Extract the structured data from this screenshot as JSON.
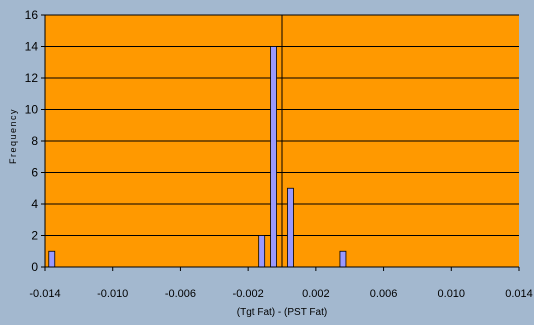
{
  "chart_data": {
    "type": "bar",
    "title": "",
    "xlabel": "(Tgt Fat) - (PST Fat)",
    "ylabel": "Frequency",
    "xlim": [
      -0.014,
      0.014
    ],
    "ylim": [
      0,
      16
    ],
    "x_ticks": [
      "-0.014",
      "-0.010",
      "-0.006",
      "-0.002",
      "0.002",
      "0.006",
      "0.010",
      "0.014"
    ],
    "x_tick_values": [
      -0.014,
      -0.01,
      -0.006,
      -0.002,
      0.002,
      0.006,
      0.01,
      0.014
    ],
    "y_ticks": [
      0,
      2,
      4,
      6,
      8,
      10,
      12,
      14,
      16
    ],
    "grid": "horizontal",
    "reference_line_x": 0.0,
    "bars": [
      {
        "x": -0.0136,
        "value": 1
      },
      {
        "x": -0.0012,
        "value": 2
      },
      {
        "x": -0.0005,
        "value": 14
      },
      {
        "x": 0.0005,
        "value": 5
      },
      {
        "x": 0.0036,
        "value": 1
      }
    ],
    "colors": {
      "plot_background": "#ff9900",
      "page_background": "#a3b8cf",
      "bar_fill": "#9999ff",
      "bar_stroke": "#000000",
      "grid": "#000000"
    }
  }
}
